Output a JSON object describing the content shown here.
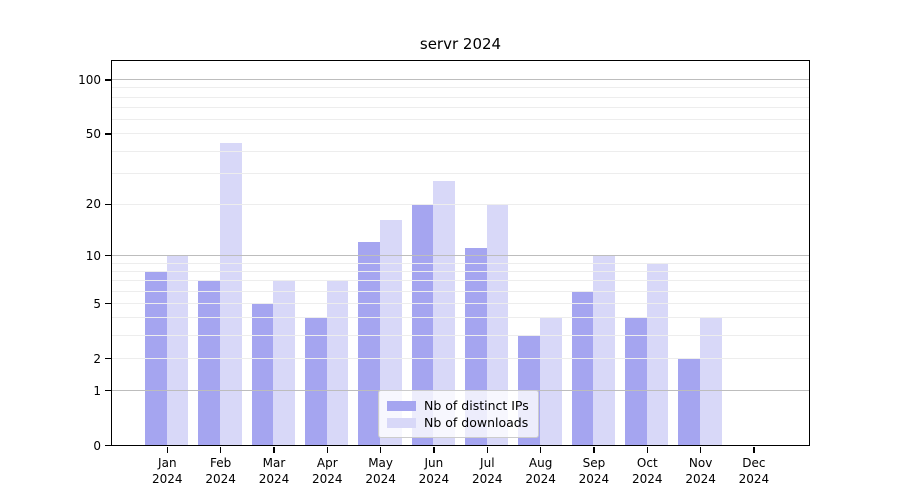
{
  "title": "servr 2024",
  "chart_data": {
    "type": "bar",
    "title": "servr 2024",
    "x_categories": [
      "Jan 2024",
      "Feb 2024",
      "Mar 2024",
      "Apr 2024",
      "May 2024",
      "Jun 2024",
      "Jul 2024",
      "Aug 2024",
      "Sep 2024",
      "Oct 2024",
      "Nov 2024",
      "Dec 2024"
    ],
    "months": [
      "Jan",
      "Feb",
      "Mar",
      "Apr",
      "May",
      "Jun",
      "Jul",
      "Aug",
      "Sep",
      "Oct",
      "Nov",
      "Dec"
    ],
    "year": "2024",
    "series": [
      {
        "name": "Nb of distinct IPs",
        "key": "distinct-ips",
        "color": "#a5a5f0",
        "values": [
          8,
          7,
          5,
          4,
          12,
          20,
          11,
          3,
          6,
          4,
          2,
          0
        ]
      },
      {
        "name": "Nb of downloads",
        "key": "downloads",
        "color": "#d8d8f8",
        "values": [
          10,
          44,
          7,
          7,
          16,
          27,
          20,
          4,
          10,
          9,
          4,
          0
        ]
      }
    ],
    "y_scale": "log1p",
    "y_axis_ticks": [
      0,
      1,
      2,
      5,
      10,
      20,
      50,
      100
    ],
    "y_major_gridlines": [
      1,
      10,
      100
    ],
    "y_minor_gridlines": [
      2,
      3,
      4,
      5,
      6,
      7,
      8,
      9,
      20,
      30,
      40,
      50,
      60,
      70,
      80,
      90
    ],
    "y_max": 126,
    "grid": true,
    "legend_position": "lower center",
    "colors": {
      "bar_distinct_ips": "#a5a5f0",
      "bar_downloads": "#d8d8f8",
      "major_grid": "#bdbdbd",
      "minor_grid": "#ededed",
      "spine": "#000000",
      "legend_border": "#cccccc"
    }
  }
}
